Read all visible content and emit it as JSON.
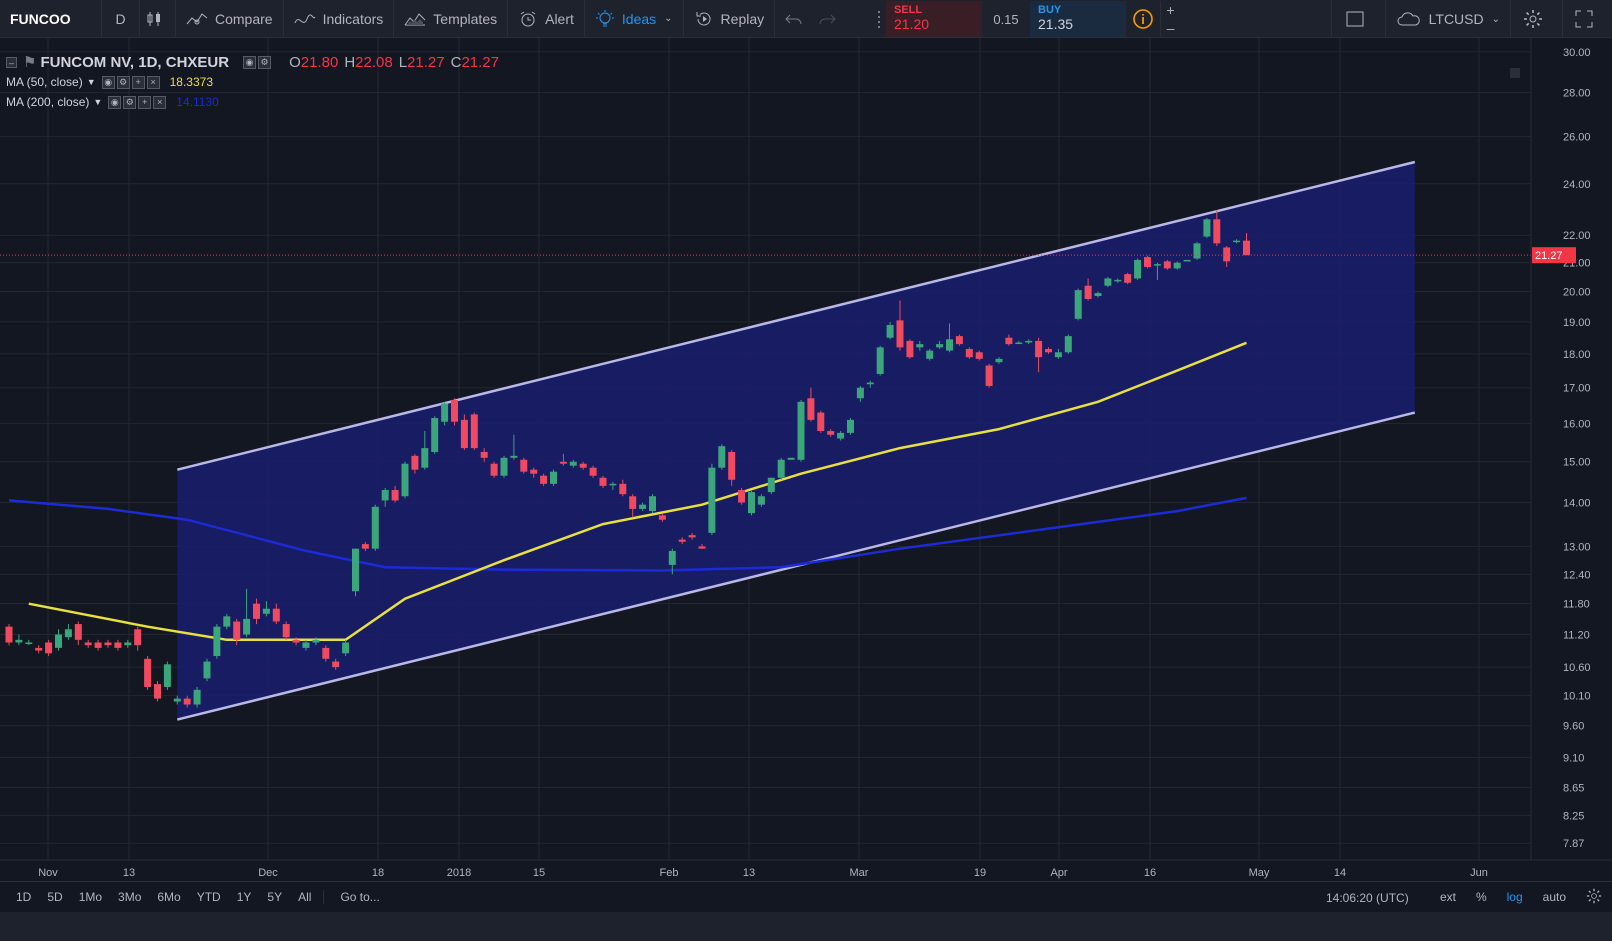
{
  "toolbar": {
    "symbol": "FUNCOO",
    "interval": "D",
    "compare_label": "Compare",
    "indicators_label": "Indicators",
    "templates_label": "Templates",
    "alert_label": "Alert",
    "ideas_label": "Ideas",
    "replay_label": "Replay",
    "right_symbol": "LTCUSD"
  },
  "trade": {
    "sell_label": "SELL",
    "sell_price": "21.20",
    "spread": "0.15",
    "buy_label": "BUY",
    "buy_price": "21.35"
  },
  "legend": {
    "title": "FUNCOM NV, 1D, CHXEUR",
    "open_label": "O",
    "open": "21.80",
    "high_label": "H",
    "high": "22.08",
    "low_label": "L",
    "low": "21.27",
    "close_label": "C",
    "close": "21.27",
    "ma50_label": "MA (50, close)",
    "ma50_value": "18.3373",
    "ma200_label": "MA (200, close)",
    "ma200_value": "14.1130"
  },
  "bottom": {
    "ranges": [
      "1D",
      "5D",
      "1Mo",
      "3Mo",
      "6Mo",
      "YTD",
      "1Y",
      "5Y",
      "All"
    ],
    "goto_label": "Go to...",
    "clock": "14:06:20 (UTC)",
    "ext_label": "ext",
    "pct_label": "%",
    "log_label": "log",
    "auto_label": "auto"
  },
  "chart_data": {
    "type": "candlestick",
    "colors": {
      "up": "#3ba67c",
      "down": "#ef4a5f",
      "ma50": "#e8e040",
      "ma200": "#1c2bd6",
      "channel_fill": "#1a1d6e",
      "channel_line": "#b9b8e6",
      "price_line": "#f23645",
      "price_badge": "#f23645"
    },
    "price_label": "21.27",
    "y_axis": {
      "scale": "log",
      "ticks": [
        "30.00",
        "28.00",
        "26.00",
        "24.00",
        "22.00",
        "21.00",
        "20.00",
        "19.00",
        "18.00",
        "17.00",
        "16.00",
        "15.00",
        "14.00",
        "13.00",
        "12.40",
        "11.80",
        "11.20",
        "10.60",
        "10.10",
        "9.60",
        "9.10",
        "8.65",
        "8.25",
        "7.87"
      ],
      "range": [
        7.65,
        30.5
      ]
    },
    "x_axis": {
      "ticks": [
        "Nov",
        "13",
        "Dec",
        "18",
        "2018",
        "15",
        "Feb",
        "13",
        "Mar",
        "19",
        "Apr",
        "16",
        "May",
        "14",
        "Jun"
      ]
    },
    "candles": [
      [
        11.35,
        11.05,
        11.4,
        11.0
      ],
      [
        11.05,
        11.1,
        11.2,
        11.0
      ],
      [
        11.05,
        11.05,
        11.1,
        11.0
      ],
      [
        10.95,
        10.9,
        11.0,
        10.85
      ],
      [
        11.05,
        10.85,
        11.1,
        10.8
      ],
      [
        10.95,
        11.2,
        11.3,
        10.9
      ],
      [
        11.15,
        11.3,
        11.4,
        11.1
      ],
      [
        11.4,
        11.1,
        11.45,
        11.0
      ],
      [
        11.05,
        11.0,
        11.1,
        10.95
      ],
      [
        11.05,
        10.95,
        11.1,
        10.9
      ],
      [
        11.05,
        11.0,
        11.1,
        10.95
      ],
      [
        11.05,
        10.95,
        11.1,
        10.9
      ],
      [
        11.0,
        11.05,
        11.1,
        10.95
      ],
      [
        11.3,
        11.0,
        11.35,
        10.9
      ],
      [
        10.75,
        10.25,
        10.8,
        10.2
      ],
      [
        10.3,
        10.05,
        10.35,
        10.0
      ],
      [
        10.25,
        10.65,
        10.7,
        10.2
      ],
      [
        10.0,
        10.05,
        10.1,
        9.95
      ],
      [
        10.05,
        9.95,
        10.1,
        9.9
      ],
      [
        9.95,
        10.2,
        10.25,
        9.9
      ],
      [
        10.4,
        10.7,
        10.75,
        10.35
      ],
      [
        10.8,
        11.35,
        11.4,
        10.75
      ],
      [
        11.35,
        11.55,
        11.6,
        11.3
      ],
      [
        11.45,
        11.1,
        11.5,
        11.0
      ],
      [
        11.2,
        11.5,
        12.1,
        11.15
      ],
      [
        11.8,
        11.5,
        11.9,
        11.4
      ],
      [
        11.6,
        11.7,
        11.85,
        11.55
      ],
      [
        11.7,
        11.45,
        11.8,
        11.4
      ],
      [
        11.4,
        11.15,
        11.45,
        11.1
      ],
      [
        11.1,
        11.05,
        11.15,
        11.0
      ],
      [
        10.95,
        11.05,
        11.1,
        10.9
      ],
      [
        11.05,
        11.1,
        11.15,
        11.0
      ],
      [
        10.95,
        10.75,
        11.0,
        10.7
      ],
      [
        10.7,
        10.6,
        10.75,
        10.55
      ],
      [
        10.85,
        11.05,
        11.1,
        10.8
      ],
      [
        12.05,
        12.95,
        12.95,
        11.95
      ],
      [
        13.05,
        12.95,
        13.1,
        12.9
      ],
      [
        12.95,
        13.9,
        13.95,
        12.9
      ],
      [
        14.05,
        14.3,
        14.35,
        13.9
      ],
      [
        14.3,
        14.05,
        14.4,
        14.0
      ],
      [
        14.15,
        14.95,
        15.0,
        14.1
      ],
      [
        15.15,
        14.8,
        15.2,
        14.7
      ],
      [
        14.85,
        15.35,
        15.8,
        14.8
      ],
      [
        15.25,
        16.15,
        16.2,
        15.2
      ],
      [
        16.05,
        16.55,
        16.6,
        15.95
      ],
      [
        16.65,
        16.05,
        16.7,
        15.95
      ],
      [
        16.1,
        15.35,
        16.25,
        15.3
      ],
      [
        16.25,
        15.35,
        16.3,
        15.3
      ],
      [
        15.25,
        15.1,
        15.35,
        15.0
      ],
      [
        14.95,
        14.65,
        15.0,
        14.6
      ],
      [
        14.65,
        15.1,
        15.15,
        14.6
      ],
      [
        15.1,
        15.15,
        15.7,
        15.05
      ],
      [
        15.05,
        14.75,
        15.1,
        14.7
      ],
      [
        14.8,
        14.7,
        14.85,
        14.6
      ],
      [
        14.65,
        14.45,
        14.7,
        14.4
      ],
      [
        14.45,
        14.75,
        14.8,
        14.4
      ],
      [
        15.0,
        14.95,
        15.2,
        14.9
      ],
      [
        14.9,
        15.0,
        15.05,
        14.85
      ],
      [
        14.95,
        14.85,
        15.0,
        14.8
      ],
      [
        14.85,
        14.65,
        14.9,
        14.6
      ],
      [
        14.6,
        14.4,
        14.65,
        14.35
      ],
      [
        14.45,
        14.45,
        14.5,
        14.3
      ],
      [
        14.45,
        14.2,
        14.55,
        14.15
      ],
      [
        14.15,
        13.85,
        14.2,
        13.65
      ],
      [
        13.85,
        13.95,
        14.0,
        13.8
      ],
      [
        13.8,
        14.15,
        14.2,
        13.75
      ],
      [
        13.7,
        13.6,
        13.75,
        13.55
      ],
      [
        12.6,
        12.9,
        12.95,
        12.4
      ],
      [
        13.15,
        13.1,
        13.2,
        13.05
      ],
      [
        13.25,
        13.2,
        13.3,
        13.15
      ],
      [
        13.0,
        12.95,
        13.05,
        12.95
      ],
      [
        13.3,
        14.85,
        14.95,
        13.25
      ],
      [
        14.85,
        15.4,
        15.45,
        14.8
      ],
      [
        15.25,
        14.55,
        15.3,
        14.4
      ],
      [
        14.3,
        14.0,
        14.35,
        13.95
      ],
      [
        13.75,
        14.25,
        14.3,
        13.7
      ],
      [
        13.95,
        14.15,
        14.2,
        13.9
      ],
      [
        14.25,
        14.6,
        14.6,
        14.2
      ],
      [
        14.6,
        15.05,
        15.1,
        14.55
      ],
      [
        15.05,
        15.1,
        15.1,
        15.05
      ],
      [
        15.05,
        16.6,
        16.65,
        15.0
      ],
      [
        16.7,
        16.1,
        17.0,
        16.05
      ],
      [
        16.3,
        15.8,
        16.35,
        15.75
      ],
      [
        15.8,
        15.7,
        15.85,
        15.65
      ],
      [
        15.6,
        15.75,
        15.8,
        15.55
      ],
      [
        15.75,
        16.1,
        16.15,
        15.7
      ],
      [
        16.7,
        17.0,
        17.05,
        16.6
      ],
      [
        17.1,
        17.15,
        17.2,
        17.0
      ],
      [
        17.4,
        18.2,
        18.25,
        17.35
      ],
      [
        18.5,
        18.9,
        19.0,
        18.45
      ],
      [
        19.05,
        18.2,
        19.7,
        18.1
      ],
      [
        18.4,
        17.9,
        18.45,
        17.85
      ],
      [
        18.2,
        18.3,
        18.4,
        18.1
      ],
      [
        17.85,
        18.1,
        18.15,
        17.8
      ],
      [
        18.2,
        18.3,
        18.4,
        18.15
      ],
      [
        18.1,
        18.45,
        18.95,
        18.05
      ],
      [
        18.55,
        18.3,
        18.6,
        18.25
      ],
      [
        18.15,
        17.9,
        18.2,
        17.85
      ],
      [
        18.05,
        17.85,
        18.1,
        17.8
      ],
      [
        17.65,
        17.05,
        17.7,
        17.0
      ],
      [
        17.75,
        17.85,
        17.9,
        17.7
      ],
      [
        18.5,
        18.3,
        18.6,
        18.25
      ],
      [
        18.35,
        18.35,
        18.4,
        18.3
      ],
      [
        18.35,
        18.4,
        18.45,
        18.3
      ],
      [
        18.4,
        17.9,
        18.5,
        17.45
      ],
      [
        18.15,
        18.05,
        18.2,
        18.0
      ],
      [
        17.9,
        18.05,
        18.15,
        17.85
      ],
      [
        18.05,
        18.55,
        18.6,
        18.0
      ],
      [
        19.1,
        20.05,
        20.1,
        19.05
      ],
      [
        20.2,
        19.75,
        20.45,
        19.7
      ],
      [
        19.85,
        19.95,
        20.0,
        19.8
      ],
      [
        20.2,
        20.45,
        20.5,
        20.15
      ],
      [
        20.35,
        20.4,
        20.45,
        20.3
      ],
      [
        20.6,
        20.3,
        20.65,
        20.25
      ],
      [
        20.45,
        21.1,
        21.15,
        20.4
      ],
      [
        21.2,
        20.85,
        21.25,
        20.8
      ],
      [
        20.9,
        20.95,
        21.0,
        20.4
      ],
      [
        21.05,
        20.8,
        21.1,
        20.75
      ],
      [
        20.8,
        21.0,
        21.05,
        20.75
      ],
      [
        21.05,
        21.1,
        21.1,
        21.05
      ],
      [
        21.15,
        21.7,
        21.75,
        21.1
      ],
      [
        21.95,
        22.6,
        22.65,
        21.9
      ],
      [
        22.6,
        21.7,
        22.95,
        21.6
      ],
      [
        21.55,
        21.05,
        21.6,
        20.85
      ],
      [
        21.75,
        21.8,
        21.85,
        21.7
      ],
      [
        21.8,
        21.27,
        22.08,
        21.27
      ]
    ],
    "ma50": [
      [
        2,
        11.8
      ],
      [
        14,
        11.35
      ],
      [
        22,
        11.1
      ],
      [
        34,
        11.1
      ],
      [
        40,
        11.9
      ],
      [
        50,
        12.7
      ],
      [
        60,
        13.5
      ],
      [
        70,
        13.95
      ],
      [
        80,
        14.7
      ],
      [
        90,
        15.35
      ],
      [
        100,
        15.85
      ],
      [
        110,
        16.6
      ],
      [
        118,
        17.5
      ],
      [
        125,
        18.34
      ]
    ],
    "ma200": [
      [
        0,
        14.05
      ],
      [
        10,
        13.85
      ],
      [
        18,
        13.6
      ],
      [
        30,
        12.9
      ],
      [
        38,
        12.55
      ],
      [
        50,
        12.5
      ],
      [
        66,
        12.48
      ],
      [
        78,
        12.55
      ],
      [
        90,
        12.95
      ],
      [
        110,
        13.55
      ],
      [
        118,
        13.8
      ],
      [
        125,
        14.11
      ]
    ],
    "channel": {
      "upper": [
        [
          17,
          14.8
        ],
        [
          142,
          24.9
        ]
      ],
      "lower": [
        [
          17,
          9.7
        ],
        [
          142,
          16.3
        ]
      ]
    }
  }
}
